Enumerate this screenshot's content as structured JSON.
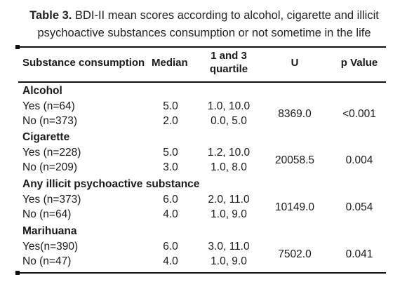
{
  "caption": {
    "label": "Table 3.",
    "text": " BDI-II mean scores according to alcohol, cigarette and illicit psychoactive substances consumption or not sometime in the life"
  },
  "headers": {
    "substance": "Substance consumption",
    "median": "Median",
    "quartile_line1": "1 and 3",
    "quartile_line2": "quartile",
    "u": "U",
    "p": "p Value"
  },
  "groups": [
    {
      "name": "Alcohol",
      "rows": [
        {
          "label": "Yes (n=64)",
          "median": "5.0",
          "quartile": "1.0, 10.0"
        },
        {
          "label": "No (n=373)",
          "median": "2.0",
          "quartile": "0.0, 5.0"
        }
      ],
      "u": "8369.0",
      "p": "<0.001"
    },
    {
      "name": "Cigarette",
      "rows": [
        {
          "label": "Yes (n=228)",
          "median": "5.0",
          "quartile": "1.2, 10.0"
        },
        {
          "label": "No (n=209)",
          "median": "3.0",
          "quartile": "1.0, 8.0"
        }
      ],
      "u": "20058.5",
      "p": "0.004"
    },
    {
      "name": "Any illicit psychoactive substance",
      "rows": [
        {
          "label": "Yes (n=373)",
          "median": "6.0",
          "quartile": "2.0, 11.0"
        },
        {
          "label": "No (n=64)",
          "median": "4.0",
          "quartile": "1.0, 9.0"
        }
      ],
      "u": "10149.0",
      "p": "0.054"
    },
    {
      "name": "Marihuana",
      "rows": [
        {
          "label": "Yes(n=390)",
          "median": "6.0",
          "quartile": "3.0, 11.0"
        },
        {
          "label": "No (n=47)",
          "median": "4.0",
          "quartile": "1.0, 9.0"
        }
      ],
      "u": "7502.0",
      "p": "0.041"
    }
  ]
}
